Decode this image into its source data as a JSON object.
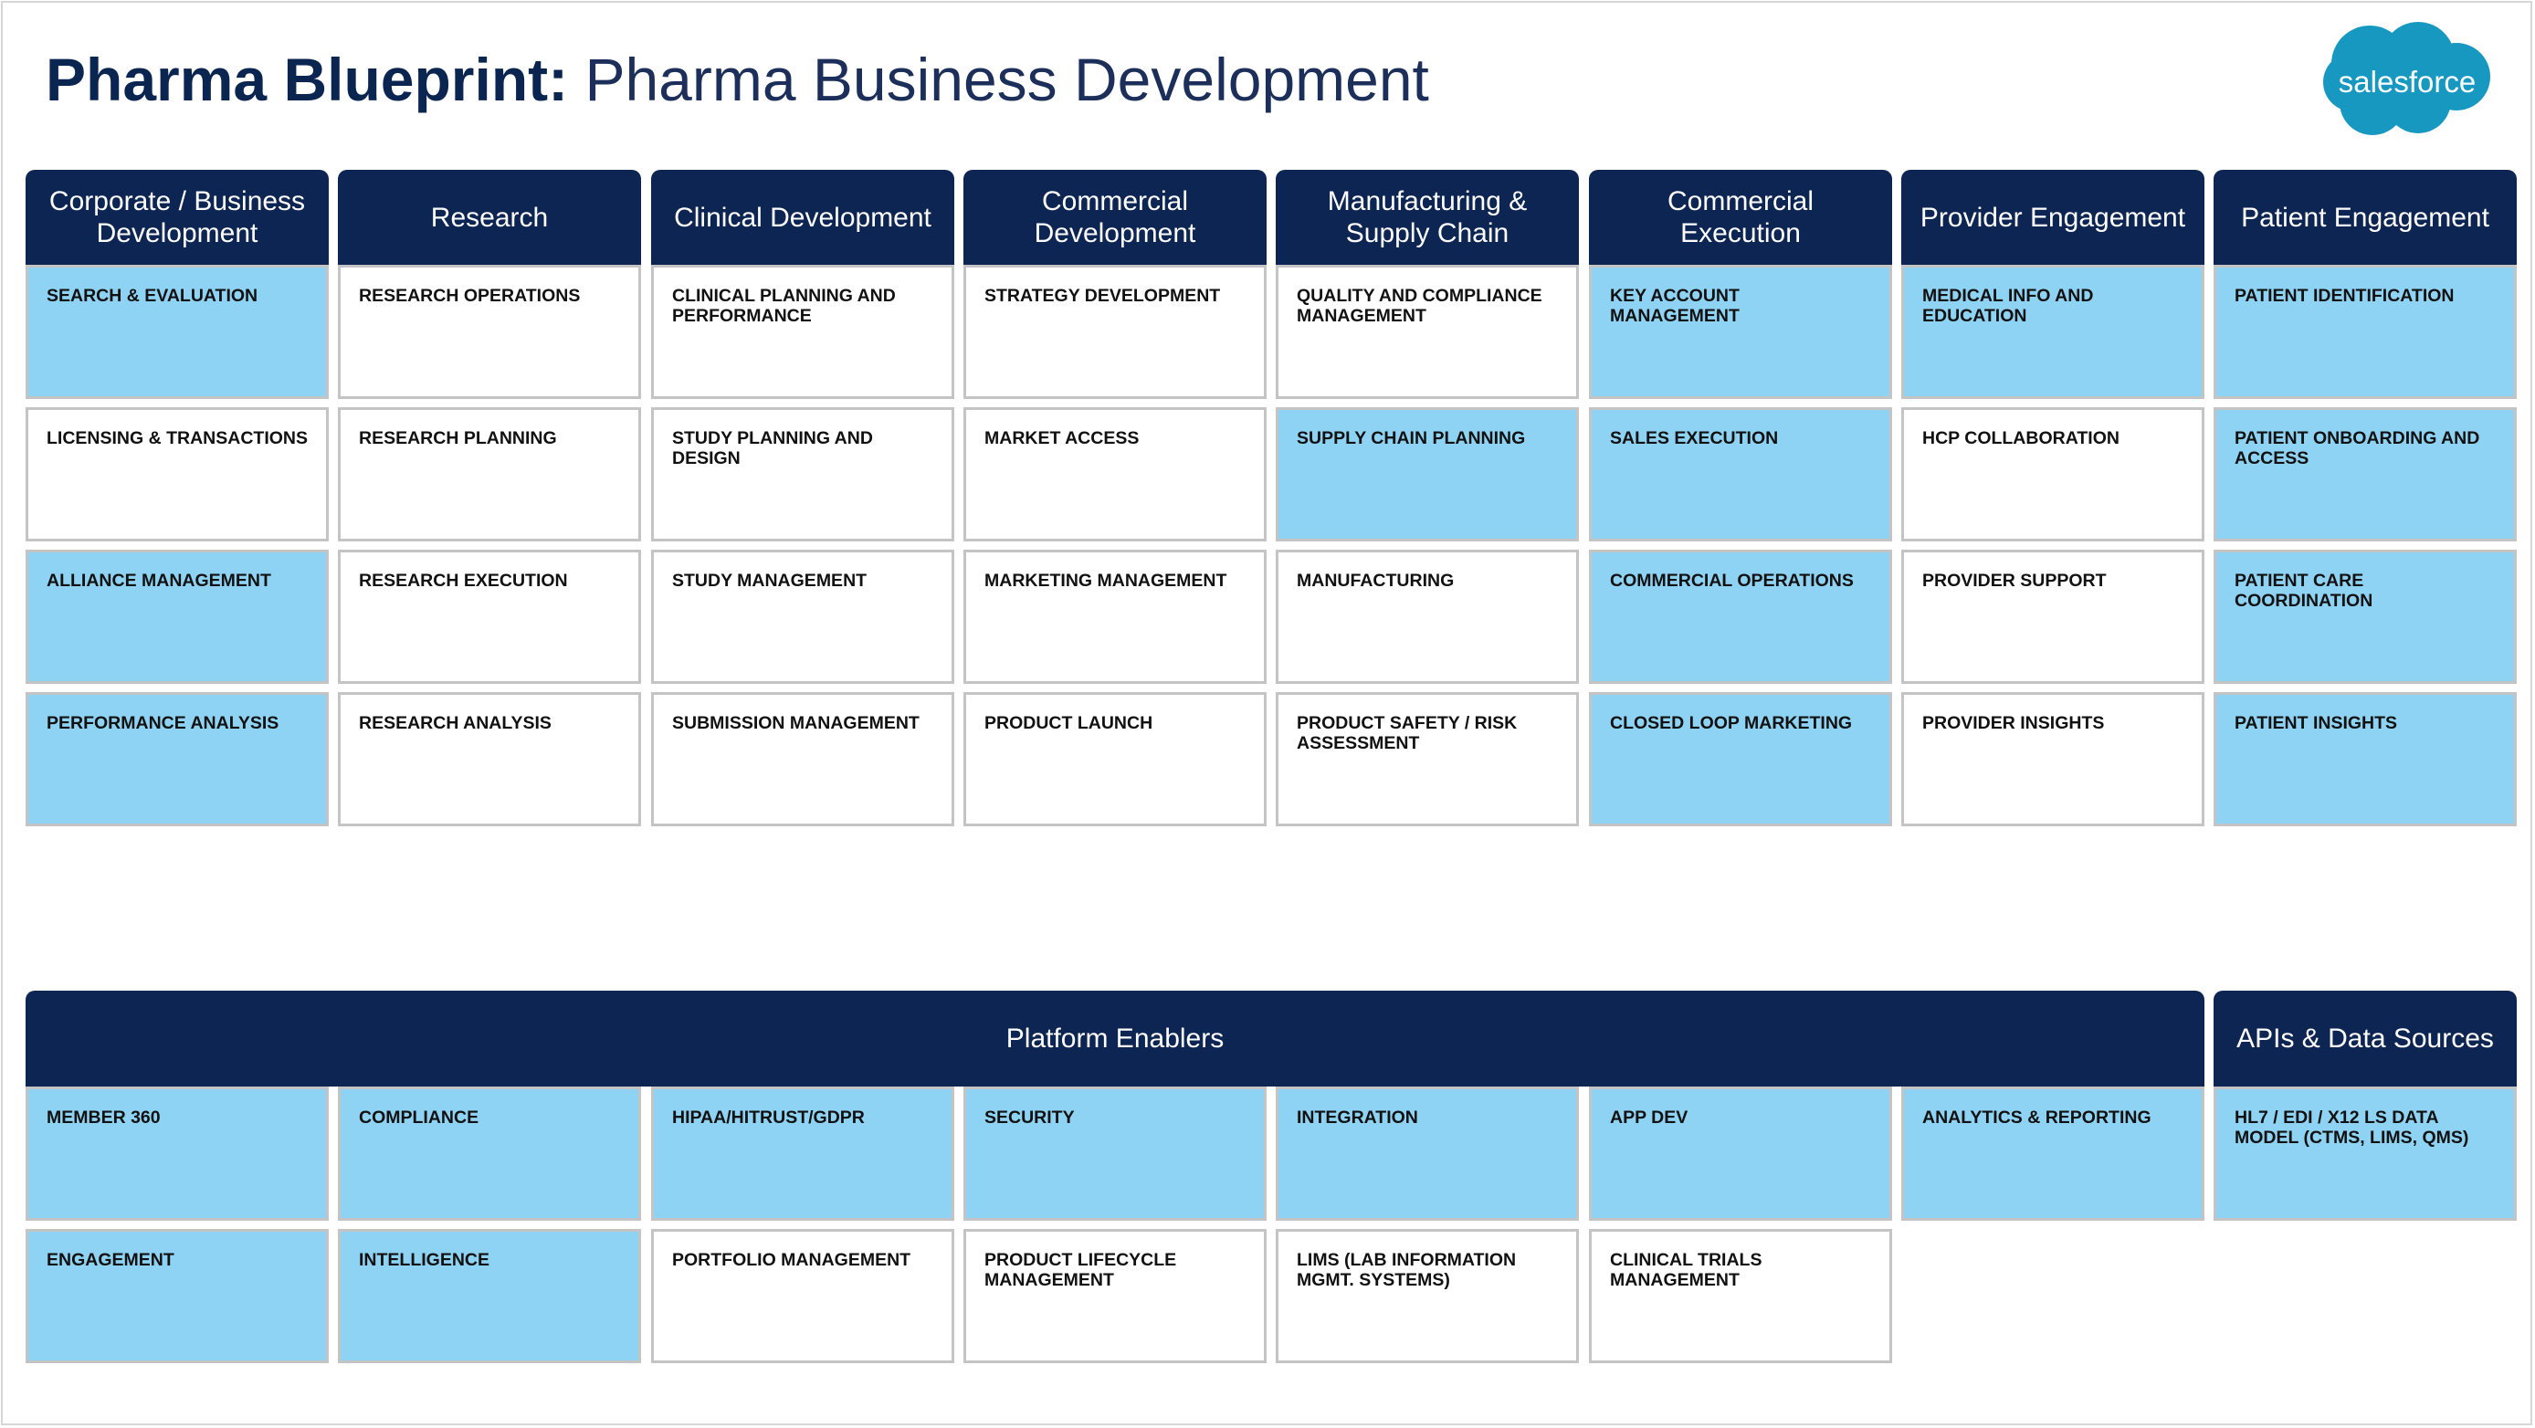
{
  "title": {
    "bold": "Pharma Blueprint:",
    "light": "Pharma Business Development"
  },
  "logo": {
    "text": "salesforce",
    "color": "#1798c1"
  },
  "colors": {
    "header": "#0d2552",
    "highlight": "#8fd3f4",
    "plain": "#ffffff",
    "border": "#c4c4c4"
  },
  "columns": [
    {
      "header": "Corporate / Business Development",
      "cells": [
        {
          "label": "SEARCH & EVALUATION",
          "highlight": true
        },
        {
          "label": "LICENSING & TRANSACTIONS",
          "highlight": false
        },
        {
          "label": "ALLIANCE MANAGEMENT",
          "highlight": true
        },
        {
          "label": "PERFORMANCE ANALYSIS",
          "highlight": true
        }
      ]
    },
    {
      "header": "Research",
      "cells": [
        {
          "label": "RESEARCH OPERATIONS",
          "highlight": false
        },
        {
          "label": "RESEARCH PLANNING",
          "highlight": false
        },
        {
          "label": "RESEARCH EXECUTION",
          "highlight": false
        },
        {
          "label": "RESEARCH ANALYSIS",
          "highlight": false
        }
      ]
    },
    {
      "header": "Clinical Development",
      "cells": [
        {
          "label": "CLINICAL PLANNING AND PERFORMANCE",
          "highlight": false
        },
        {
          "label": "STUDY PLANNING AND DESIGN",
          "highlight": false
        },
        {
          "label": "STUDY MANAGEMENT",
          "highlight": false
        },
        {
          "label": "SUBMISSION MANAGEMENT",
          "highlight": false
        }
      ]
    },
    {
      "header": "Commercial Development",
      "cells": [
        {
          "label": "STRATEGY DEVELOPMENT",
          "highlight": false
        },
        {
          "label": "MARKET ACCESS",
          "highlight": false
        },
        {
          "label": "MARKETING MANAGEMENT",
          "highlight": false
        },
        {
          "label": "PRODUCT LAUNCH",
          "highlight": false
        }
      ]
    },
    {
      "header": "Manufacturing & Supply Chain",
      "cells": [
        {
          "label": "QUALITY AND COMPLIANCE MANAGEMENT",
          "highlight": false
        },
        {
          "label": "SUPPLY CHAIN PLANNING",
          "highlight": true
        },
        {
          "label": "MANUFACTURING",
          "highlight": false
        },
        {
          "label": "PRODUCT SAFETY / RISK ASSESSMENT",
          "highlight": false
        }
      ]
    },
    {
      "header": "Commercial Execution",
      "cells": [
        {
          "label": "KEY ACCOUNT MANAGEMENT",
          "highlight": true
        },
        {
          "label": "SALES EXECUTION",
          "highlight": true
        },
        {
          "label": "COMMERCIAL OPERATIONS",
          "highlight": true
        },
        {
          "label": "CLOSED LOOP MARKETING",
          "highlight": true
        }
      ]
    },
    {
      "header": "Provider Engagement",
      "cells": [
        {
          "label": "MEDICAL INFO AND EDUCATION",
          "highlight": true
        },
        {
          "label": "HCP COLLABORATION",
          "highlight": false
        },
        {
          "label": "PROVIDER SUPPORT",
          "highlight": false
        },
        {
          "label": "PROVIDER INSIGHTS",
          "highlight": false
        }
      ]
    },
    {
      "header": "Patient Engagement",
      "cells": [
        {
          "label": "PATIENT IDENTIFICATION",
          "highlight": true
        },
        {
          "label": "PATIENT ONBOARDING AND ACCESS",
          "highlight": true
        },
        {
          "label": "PATIENT CARE COORDINATION",
          "highlight": true
        },
        {
          "label": "PATIENT INSIGHTS",
          "highlight": true
        }
      ]
    }
  ],
  "platform": {
    "header": "Platform Enablers",
    "rows": [
      [
        {
          "label": "MEMBER 360",
          "highlight": true
        },
        {
          "label": "COMPLIANCE",
          "highlight": true
        },
        {
          "label": "HIPAA/HITRUST/GDPR",
          "highlight": true
        },
        {
          "label": "SECURITY",
          "highlight": true
        },
        {
          "label": "INTEGRATION",
          "highlight": true
        },
        {
          "label": "APP DEV",
          "highlight": true
        },
        {
          "label": "ANALYTICS & REPORTING",
          "highlight": true
        }
      ],
      [
        {
          "label": "ENGAGEMENT",
          "highlight": true
        },
        {
          "label": "INTELLIGENCE",
          "highlight": true
        },
        {
          "label": "PORTFOLIO MANAGEMENT",
          "highlight": false
        },
        {
          "label": "PRODUCT LIFECYCLE MANAGEMENT",
          "highlight": false
        },
        {
          "label": "LIMS (LAB INFORMATION MGMT. SYSTEMS)",
          "highlight": false
        },
        {
          "label": "CLINICAL TRIALS MANAGEMENT",
          "highlight": false
        }
      ]
    ]
  },
  "apis": {
    "header": "APIs & Data Sources",
    "cells": [
      {
        "label": "HL7 / EDI / X12 LS DATA MODEL (CTMS, LIMS, QMS)",
        "highlight": true
      }
    ]
  }
}
